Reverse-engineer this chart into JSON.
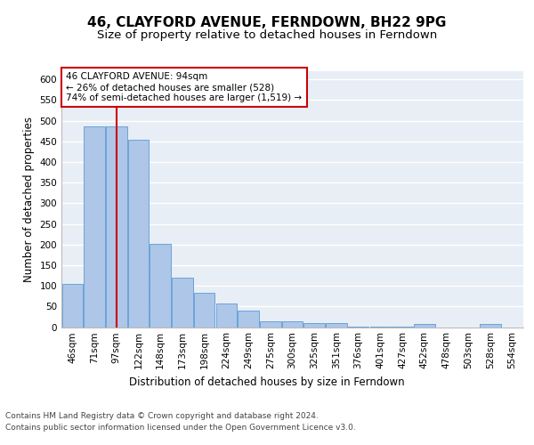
{
  "title": "46, CLAYFORD AVENUE, FERNDOWN, BH22 9PG",
  "subtitle": "Size of property relative to detached houses in Ferndown",
  "xlabel": "Distribution of detached houses by size in Ferndown",
  "ylabel": "Number of detached properties",
  "footer1": "Contains HM Land Registry data © Crown copyright and database right 2024.",
  "footer2": "Contains public sector information licensed under the Open Government Licence v3.0.",
  "categories": [
    "46sqm",
    "71sqm",
    "97sqm",
    "122sqm",
    "148sqm",
    "173sqm",
    "198sqm",
    "224sqm",
    "249sqm",
    "275sqm",
    "300sqm",
    "325sqm",
    "351sqm",
    "376sqm",
    "401sqm",
    "427sqm",
    "452sqm",
    "478sqm",
    "503sqm",
    "528sqm",
    "554sqm"
  ],
  "values": [
    105,
    487,
    487,
    455,
    202,
    120,
    83,
    57,
    40,
    15,
    15,
    10,
    10,
    2,
    2,
    2,
    7,
    0,
    0,
    7,
    0
  ],
  "bar_color": "#aec6e8",
  "bar_edge_color": "#5b9bd5",
  "vline_x_index": 2,
  "vline_color": "#cc0000",
  "annotation_line1": "46 CLAYFORD AVENUE: 94sqm",
  "annotation_line2": "← 26% of detached houses are smaller (528)",
  "annotation_line3": "74% of semi-detached houses are larger (1,519) →",
  "annotation_box_color": "#ffffff",
  "annotation_box_edge": "#cc0000",
  "ylim": [
    0,
    620
  ],
  "yticks": [
    0,
    50,
    100,
    150,
    200,
    250,
    300,
    350,
    400,
    450,
    500,
    550,
    600
  ],
  "background_color": "#e8eef5",
  "grid_color": "#ffffff",
  "title_fontsize": 11,
  "subtitle_fontsize": 9.5,
  "axis_label_fontsize": 8.5,
  "tick_fontsize": 7.5,
  "annotation_fontsize": 7.5
}
